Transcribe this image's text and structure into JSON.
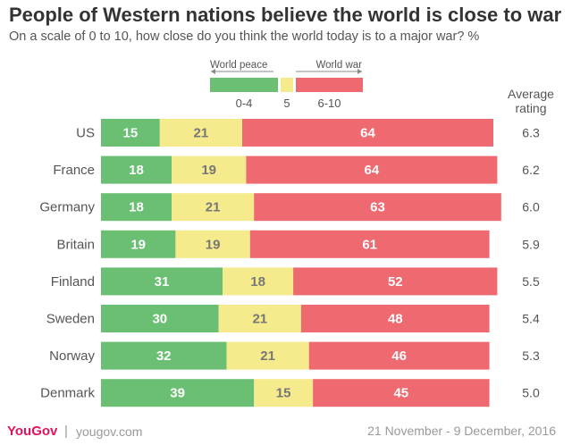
{
  "header": {
    "title": "People of Western nations believe the world is close to war",
    "subtitle": "On a scale of 0 to 10, how close do you think the world today is to a major war? %"
  },
  "legend": {
    "left_label": "World peace",
    "right_label": "World war",
    "items": [
      {
        "label": "0-4",
        "color": "#6abf73"
      },
      {
        "label": "5",
        "color": "#f5ea8c"
      },
      {
        "label": "6-10",
        "color": "#ee6a70"
      }
    ]
  },
  "chart_data": {
    "type": "bar",
    "orientation": "horizontal",
    "stacked": true,
    "title": "People of Western nations believe the world is close to war",
    "subtitle": "On a scale of 0 to 10, how close do you think the world today is to a major war? %",
    "categories": [
      "US",
      "France",
      "Germany",
      "Britain",
      "Finland",
      "Sweden",
      "Norway",
      "Denmark"
    ],
    "series": [
      {
        "name": "0-4",
        "color": "#6abf73",
        "values": [
          15,
          18,
          18,
          19,
          31,
          30,
          32,
          39
        ]
      },
      {
        "name": "5",
        "color": "#f5ea8c",
        "values": [
          21,
          19,
          21,
          19,
          18,
          21,
          21,
          15
        ]
      },
      {
        "name": "6-10",
        "color": "#ee6a70",
        "values": [
          64,
          64,
          63,
          61,
          52,
          48,
          46,
          45
        ]
      }
    ],
    "average_rating": {
      "label": "Average rating",
      "values": [
        "6.3",
        "6.2",
        "6.0",
        "5.9",
        "5.5",
        "5.4",
        "5.3",
        "5.0"
      ]
    },
    "unit": "%"
  },
  "footer": {
    "brand": "YouGov",
    "separator": "|",
    "url": "yougov.com",
    "date": "21 November - 9 December, 2016"
  }
}
